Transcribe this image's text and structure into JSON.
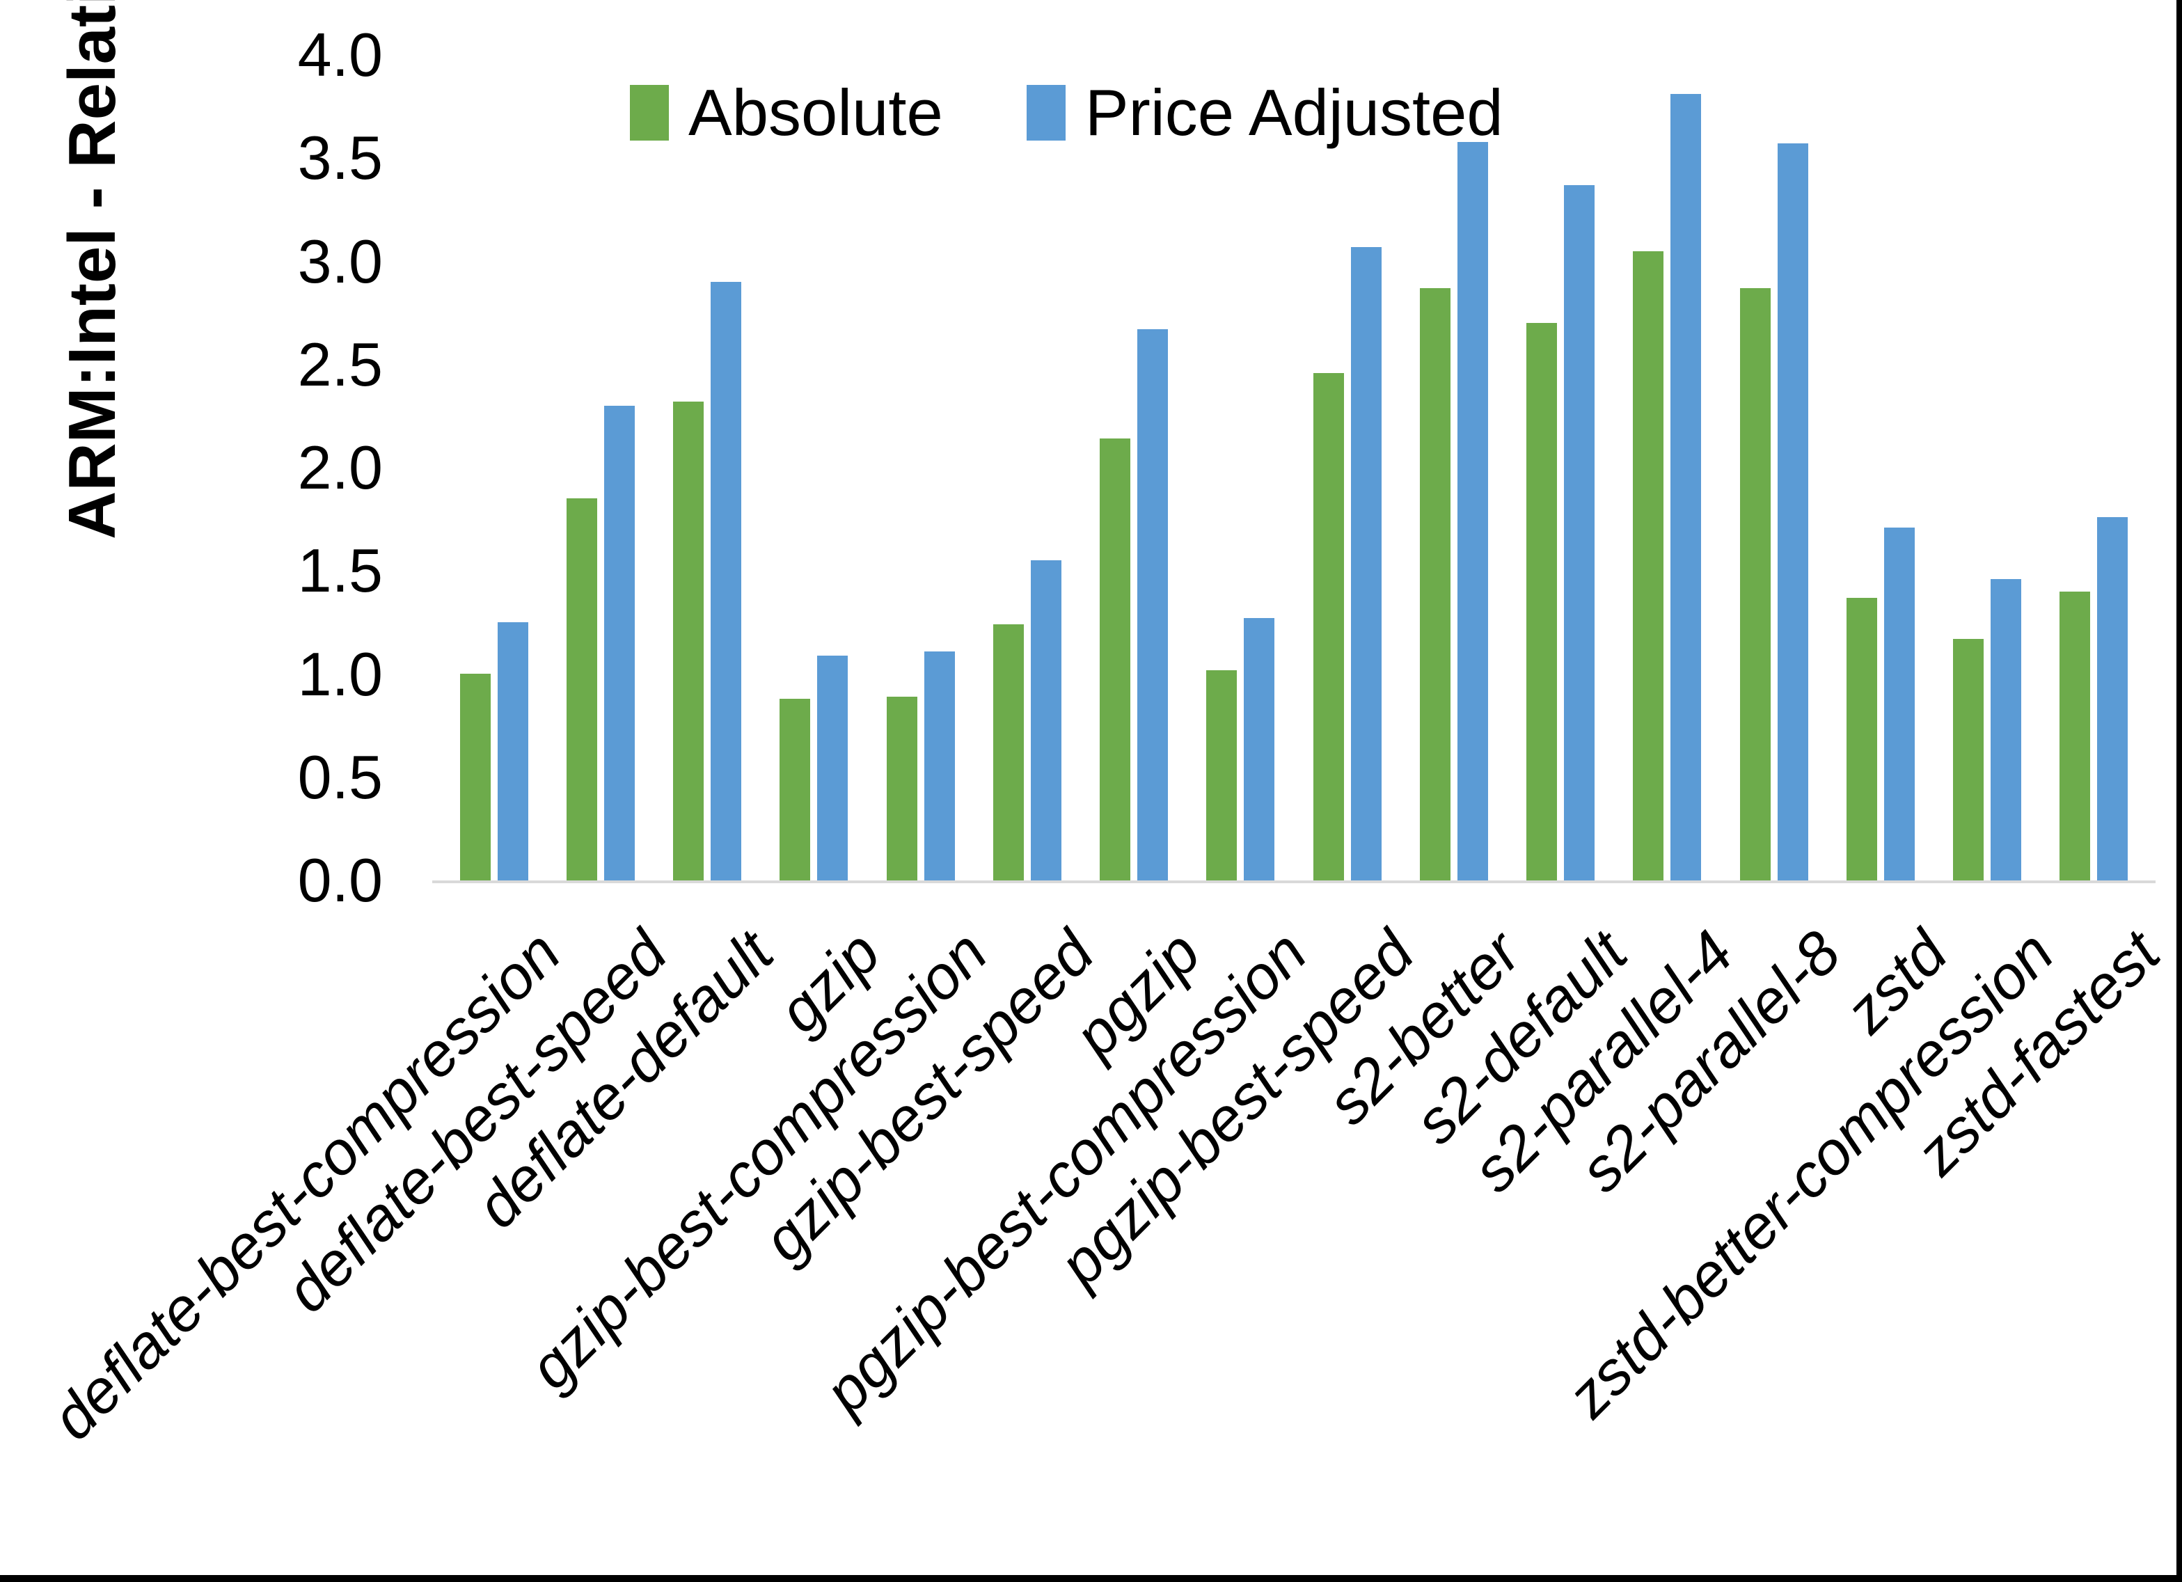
{
  "frame": {
    "background": "#ffffff",
    "border_color": "#000000"
  },
  "chart_data": {
    "type": "bar",
    "title": "",
    "xlabel": "",
    "ylabel": "ARM:Intel - Relative Performance",
    "ylim": [
      0.0,
      4.0
    ],
    "ytick_step": 0.5,
    "yticks": [
      "0.0",
      "0.5",
      "1.0",
      "1.5",
      "2.0",
      "2.5",
      "3.0",
      "3.5",
      "4.0"
    ],
    "grid": false,
    "legend_position": "top-center",
    "axis_line_color": "#d9d9d9",
    "categories": [
      "deflate-best-compression",
      "deflate-best-speed",
      "deflate-default",
      "gzip",
      "gzip-best-compression",
      "gzip-best-speed",
      "pgzip",
      "pgzip-best-compression",
      "pgzip-best-speed",
      "s2-better",
      "s2-default",
      "s2-parallel-4",
      "s2-parallel-8",
      "zstd",
      "zstd-better-compression",
      "zstd-fastest"
    ],
    "series": [
      {
        "name": "Absolute",
        "color": "#6dab4b",
        "values": [
          1.0,
          1.85,
          2.32,
          0.88,
          0.89,
          1.24,
          2.14,
          1.02,
          2.46,
          2.87,
          2.7,
          3.05,
          2.87,
          1.37,
          1.17,
          1.4
        ]
      },
      {
        "name": "Price Adjusted",
        "color": "#5b9bd5",
        "values": [
          1.25,
          2.3,
          2.9,
          1.09,
          1.11,
          1.55,
          2.67,
          1.27,
          3.07,
          3.58,
          3.37,
          3.81,
          3.57,
          1.71,
          1.46,
          1.76
        ]
      }
    ]
  }
}
